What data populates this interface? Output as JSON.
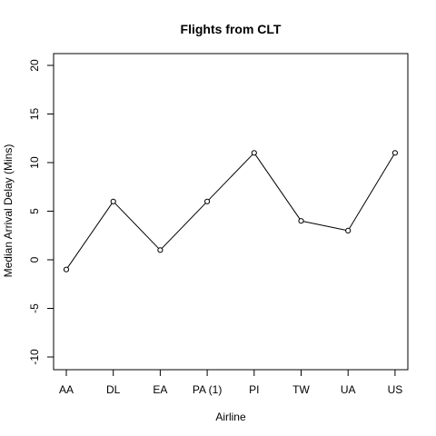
{
  "chart_data": {
    "type": "line",
    "title": "Flights from CLT",
    "xlabel": "Airline",
    "ylabel": "Median Arrival Delay (Mins)",
    "categories": [
      "AA",
      "DL",
      "EA",
      "PA (1)",
      "PI",
      "TW",
      "UA",
      "US"
    ],
    "values": [
      -1,
      6,
      1,
      6,
      11,
      4,
      3,
      11
    ],
    "ylim": [
      -10,
      20
    ],
    "yticks": [
      -10,
      -5,
      0,
      5,
      10,
      15,
      20
    ],
    "grid": false,
    "markers": "open-circle",
    "colors": {
      "line": "#000000",
      "axis": "#000000"
    }
  }
}
